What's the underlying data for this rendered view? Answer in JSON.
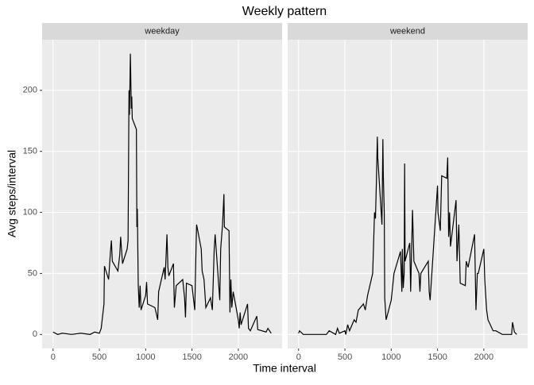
{
  "chart_data": {
    "type": "line",
    "title": "Weekly pattern",
    "x_label": "Time interval",
    "y_label": "Avg steps/interval",
    "color": "#000000",
    "grid": true,
    "xlim": [
      -118,
      2473
    ],
    "xticks": [
      0,
      500,
      1000,
      1500,
      2000
    ],
    "ylim": [
      -11.5,
      241.5
    ],
    "yticks": [
      0,
      50,
      100,
      150,
      200
    ],
    "facets": [
      {
        "name": "weekday",
        "x": [
          0,
          50,
          100,
          200,
          300,
          400,
          450,
          500,
          520,
          550,
          555,
          600,
          620,
          630,
          640,
          700,
          720,
          730,
          750,
          800,
          810,
          820,
          825,
          835,
          845,
          850,
          855,
          900,
          905,
          910,
          920,
          930,
          940,
          950,
          1000,
          1010,
          1020,
          1100,
          1130,
          1140,
          1200,
          1210,
          1230,
          1240,
          1250,
          1300,
          1310,
          1330,
          1400,
          1420,
          1430,
          1440,
          1500,
          1530,
          1545,
          1550,
          1600,
          1610,
          1630,
          1650,
          1700,
          1720,
          1740,
          1750,
          1800,
          1810,
          1830,
          1845,
          1850,
          1900,
          1910,
          1920,
          1930,
          1945,
          2000,
          2010,
          2020,
          2030,
          2100,
          2110,
          2130,
          2200,
          2210,
          2300,
          2320,
          2355
        ],
        "values": [
          2,
          0,
          1,
          0,
          1,
          0,
          2,
          1,
          5,
          25,
          56,
          45,
          68,
          77,
          60,
          52,
          65,
          80,
          58,
          70,
          77,
          200,
          180,
          230,
          185,
          195,
          177,
          168,
          88,
          103,
          40,
          22,
          40,
          20,
          32,
          43,
          25,
          22,
          12,
          35,
          55,
          45,
          82,
          55,
          48,
          58,
          22,
          40,
          45,
          30,
          14,
          42,
          40,
          20,
          75,
          90,
          70,
          52,
          45,
          22,
          30,
          20,
          70,
          82,
          28,
          70,
          90,
          115,
          88,
          85,
          18,
          45,
          22,
          35,
          12,
          5,
          18,
          8,
          25,
          5,
          3,
          15,
          4,
          2,
          5,
          1
        ]
      },
      {
        "name": "weekend",
        "x": [
          0,
          10,
          50,
          300,
          330,
          400,
          420,
          440,
          500,
          510,
          530,
          550,
          600,
          620,
          645,
          700,
          720,
          745,
          800,
          810,
          820,
          830,
          840,
          850,
          855,
          900,
          910,
          915,
          925,
          930,
          945,
          1000,
          1030,
          1100,
          1115,
          1120,
          1130,
          1140,
          1145,
          1150,
          1200,
          1210,
          1230,
          1245,
          1300,
          1310,
          1320,
          1400,
          1410,
          1420,
          1500,
          1505,
          1530,
          1545,
          1600,
          1610,
          1620,
          1630,
          1640,
          1700,
          1710,
          1730,
          1745,
          1800,
          1810,
          1830,
          1900,
          1915,
          1930,
          1940,
          2000,
          2010,
          2030,
          2045,
          2100,
          2130,
          2200,
          2300,
          2310,
          2330,
          2355
        ],
        "values": [
          1,
          3,
          0,
          0,
          3,
          0,
          5,
          1,
          3,
          0,
          8,
          3,
          12,
          10,
          20,
          25,
          20,
          32,
          50,
          75,
          100,
          95,
          125,
          162,
          145,
          90,
          160,
          130,
          100,
          30,
          12,
          28,
          50,
          68,
          35,
          70,
          38,
          50,
          140,
          60,
          75,
          35,
          102,
          60,
          50,
          35,
          50,
          60,
          35,
          28,
          122,
          100,
          85,
          130,
          128,
          145,
          80,
          100,
          72,
          110,
          60,
          90,
          42,
          40,
          60,
          55,
          82,
          20,
          50,
          50,
          70,
          45,
          20,
          12,
          3,
          3,
          0,
          0,
          10,
          2,
          0
        ]
      }
    ]
  }
}
